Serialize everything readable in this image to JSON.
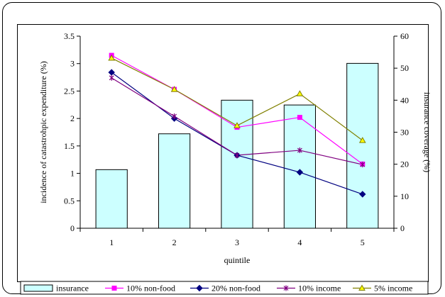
{
  "chart_data": {
    "type": "bar",
    "categories": [
      "1",
      "2",
      "3",
      "4",
      "5"
    ],
    "xlabel": "quintile",
    "ylabel": "incidence of catastrohpic expenditure (%)",
    "y2label": "insurance coverage (%)",
    "ylim": [
      0,
      3.5
    ],
    "y2lim": [
      0,
      60
    ],
    "yticks": [
      "0",
      "0.5",
      "1",
      "1.5",
      "2",
      "2.5",
      "3",
      "3.5"
    ],
    "y2ticks": [
      "0",
      "10",
      "20",
      "30",
      "40",
      "50",
      "60"
    ],
    "series": [
      {
        "name": "insurance",
        "kind": "bar",
        "axis": "right",
        "color": "#ccffff",
        "values": [
          18.3,
          29.5,
          40.0,
          38.5,
          51.5
        ]
      },
      {
        "name": "10% non-food",
        "kind": "line",
        "axis": "left",
        "marker": "square",
        "color": "#ff00ff",
        "values": [
          3.15,
          2.53,
          1.84,
          2.02,
          1.17
        ]
      },
      {
        "name": "20% non-food",
        "kind": "line",
        "axis": "left",
        "marker": "diamond",
        "color": "#000080",
        "values": [
          2.84,
          2.0,
          1.33,
          1.02,
          0.62
        ]
      },
      {
        "name": "10% income",
        "kind": "line",
        "axis": "left",
        "marker": "star",
        "color": "#800080",
        "values": [
          2.74,
          2.04,
          1.33,
          1.42,
          1.16
        ]
      },
      {
        "name": "5% income",
        "kind": "line",
        "axis": "left",
        "marker": "triangle",
        "color": "#808000",
        "fill": "#ffff00",
        "values": [
          3.1,
          2.53,
          1.87,
          2.45,
          1.6
        ]
      }
    ],
    "grid": false,
    "legend": "bottom"
  }
}
